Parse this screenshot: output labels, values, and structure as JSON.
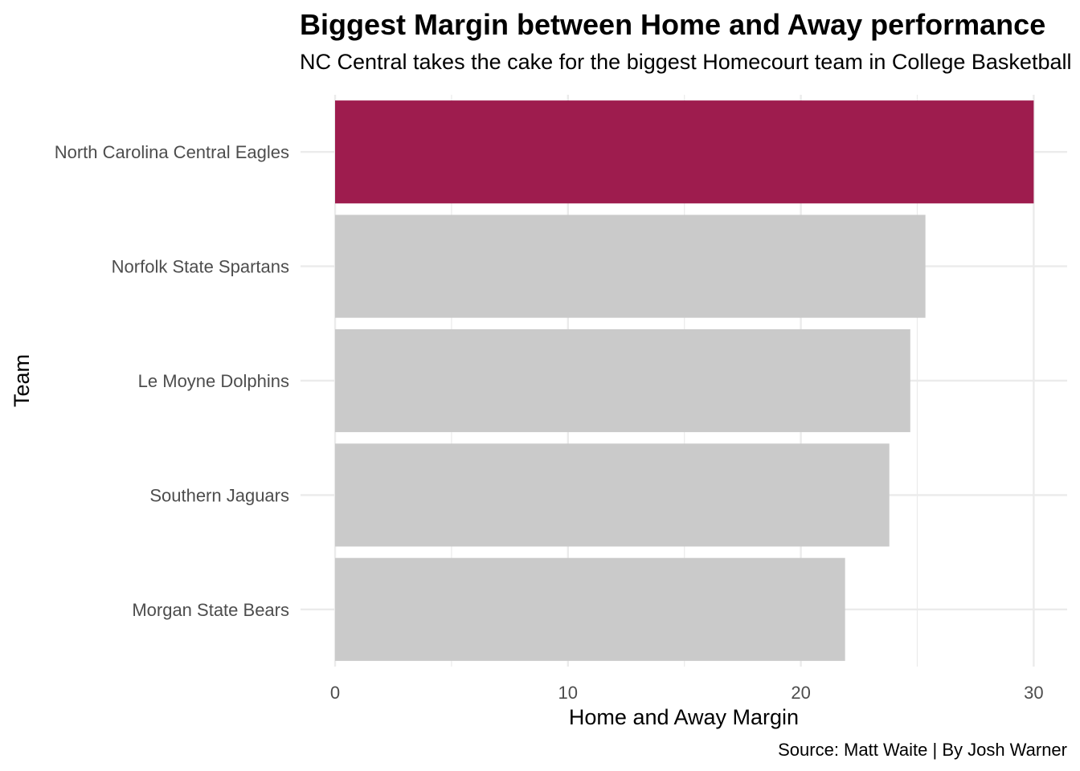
{
  "title": "Biggest Margin between Home and Away performance",
  "subtitle": "NC Central takes the cake for the biggest Homecourt team in College Basketball",
  "caption": "Source: Matt Waite | By Josh Warner",
  "colors": {
    "highlight": "#9e1c4e",
    "default": "#cacaca",
    "grid": "#ebebeb"
  },
  "chart_data": {
    "type": "bar",
    "orientation": "horizontal",
    "categories": [
      "North Carolina Central Eagles",
      "Norfolk State Spartans",
      "Le Moyne Dolphins",
      "Southern Jaguars",
      "Morgan State Bears"
    ],
    "values": [
      30.0,
      25.35,
      24.7,
      23.8,
      21.9
    ],
    "highlight": "North Carolina Central Eagles",
    "xlabel": "Home and Away Margin",
    "ylabel": "Team",
    "xlim": [
      0,
      31.5
    ],
    "xticks": [
      0,
      10,
      20,
      30
    ],
    "grid": true
  }
}
